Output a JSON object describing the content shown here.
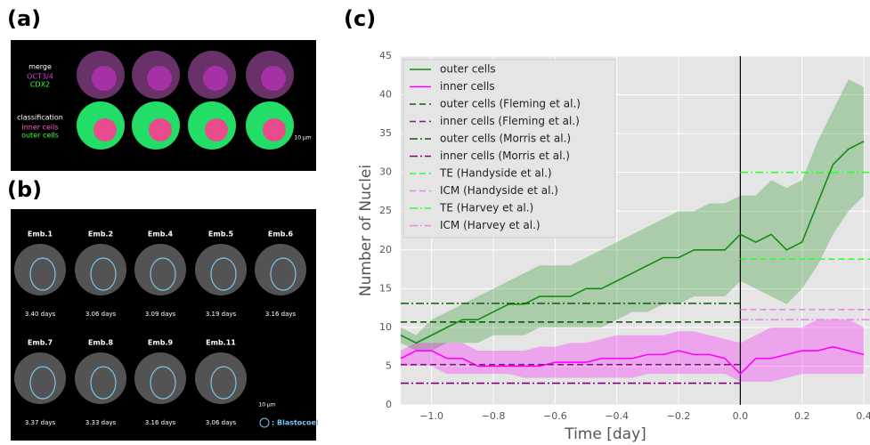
{
  "panel_a": {
    "label": "(a)",
    "rows": [
      "merge",
      "classification"
    ],
    "channels": [
      "OCT3/4",
      "CDX2"
    ],
    "classes": [
      "inner cells",
      "outer cells"
    ],
    "scale": "10 μm"
  },
  "panel_b": {
    "label": "(b)",
    "embryos": [
      {
        "name": "Emb.1",
        "days": "3.40 days"
      },
      {
        "name": "Emb.2",
        "days": "3.06 days"
      },
      {
        "name": "Emb.4",
        "days": "3.09 days"
      },
      {
        "name": "Emb.5",
        "days": "3.19 days"
      },
      {
        "name": "Emb.6",
        "days": "3.16 days"
      },
      {
        "name": "Emb.7",
        "days": "3.37 days"
      },
      {
        "name": "Emb.8",
        "days": "3.33 days"
      },
      {
        "name": "Emb.9",
        "days": "3.16 days"
      },
      {
        "name": "Emb.11",
        "days": "3.06 days"
      }
    ],
    "scale": "10 μm",
    "legend": ": Blastocoel"
  },
  "panel_c": {
    "label": "(c)"
  },
  "chart_data": {
    "type": "line",
    "xlabel": "Time [day]",
    "ylabel": "Number of Nuclei",
    "xlim": [
      -1.1,
      0.42
    ],
    "ylim": [
      0,
      45
    ],
    "xticks": [
      {
        "value": -1.0,
        "label": "−1.0"
      },
      {
        "value": -0.8,
        "label": "−0.8"
      },
      {
        "value": -0.6,
        "label": "−0.6"
      },
      {
        "value": -0.4,
        "label": "−0.4"
      },
      {
        "value": -0.2,
        "label": "−0.2"
      },
      {
        "value": 0,
        "label": "0.0"
      },
      0.2,
      0.4
    ],
    "yticks": [
      0,
      5,
      10,
      15,
      20,
      25,
      30,
      35,
      40,
      45
    ],
    "grid": true,
    "vline": 0,
    "legend": "upper left",
    "series": [
      {
        "name": "outer cells",
        "color": "#138c13",
        "dash": "solid",
        "x": [
          -1.1,
          -1.05,
          -1.0,
          -0.95,
          -0.9,
          -0.85,
          -0.8,
          -0.75,
          -0.7,
          -0.65,
          -0.6,
          -0.55,
          -0.5,
          -0.45,
          -0.4,
          -0.35,
          -0.3,
          -0.25,
          -0.2,
          -0.15,
          -0.1,
          -0.05,
          0,
          0.05,
          0.1,
          0.15,
          0.2,
          0.25,
          0.3,
          0.35,
          0.4
        ],
        "values": [
          9,
          8,
          9,
          10,
          11,
          11,
          12,
          13,
          13,
          14,
          14,
          14,
          15,
          15,
          16,
          17,
          18,
          19,
          19,
          20,
          20,
          20,
          22,
          21,
          22,
          20,
          21,
          26,
          31,
          33,
          34
        ],
        "band": {
          "lower": [
            8,
            7,
            7,
            8,
            8,
            8,
            9,
            9,
            9,
            10,
            10,
            10,
            10,
            10,
            11,
            12,
            12,
            13,
            13,
            14,
            14,
            14,
            16,
            15,
            14,
            13,
            15,
            18,
            22,
            25,
            27
          ],
          "upper": [
            10,
            9,
            11,
            12,
            13,
            14,
            15,
            16,
            17,
            18,
            18,
            18,
            19,
            20,
            21,
            22,
            23,
            24,
            25,
            25,
            26,
            26,
            27,
            27,
            29,
            28,
            29,
            34,
            38,
            42,
            41
          ]
        }
      },
      {
        "name": "inner cells",
        "color": "#ff00ff",
        "dash": "solid",
        "x": [
          -1.1,
          -1.05,
          -1.0,
          -0.95,
          -0.9,
          -0.85,
          -0.8,
          -0.75,
          -0.7,
          -0.65,
          -0.6,
          -0.55,
          -0.5,
          -0.45,
          -0.4,
          -0.35,
          -0.3,
          -0.25,
          -0.2,
          -0.15,
          -0.1,
          -0.05,
          0,
          0.05,
          0.1,
          0.15,
          0.2,
          0.25,
          0.3,
          0.35,
          0.4
        ],
        "values": [
          6,
          7,
          7,
          6,
          6,
          5,
          5,
          5,
          5,
          5,
          5.5,
          5.5,
          5.5,
          6,
          6,
          6,
          6.5,
          6.5,
          7,
          6.5,
          6.5,
          6,
          4,
          6,
          6,
          6.5,
          7,
          7,
          7.5,
          7,
          6.5
        ],
        "band": {
          "lower": [
            5,
            5,
            5,
            4,
            4,
            4,
            4,
            4,
            3.5,
            3.5,
            3.5,
            3.5,
            3.5,
            3.5,
            3.5,
            3.5,
            4,
            4,
            4,
            4,
            4,
            4,
            3,
            3,
            3,
            3.5,
            4,
            4,
            4,
            4,
            4
          ],
          "upper": [
            7,
            8,
            8,
            8,
            8,
            7,
            7,
            7,
            7,
            7.5,
            7.5,
            8,
            8,
            8.5,
            9,
            9,
            9,
            9,
            9.5,
            9.5,
            9,
            8.5,
            8,
            9,
            10,
            10,
            10,
            11,
            11,
            11,
            10
          ]
        }
      },
      {
        "name": "outer cells (Fleming et al.)",
        "color": "#0b5e0b",
        "dash": "dashed",
        "x": [
          -1.1,
          0
        ],
        "values": [
          10.7,
          10.7
        ]
      },
      {
        "name": "inner cells (Fleming et al.)",
        "color": "#7a1f7a",
        "dash": "dashed",
        "x": [
          -1.1,
          0
        ],
        "values": [
          5.2,
          5.2
        ]
      },
      {
        "name": "outer cells (Morris et al.)",
        "color": "#0b5e0b",
        "dash": "dashdot",
        "x": [
          -1.1,
          0
        ],
        "values": [
          13.1,
          13.1
        ]
      },
      {
        "name": "inner cells (Morris et al.)",
        "color": "#800080",
        "dash": "dashdot",
        "x": [
          -1.1,
          0
        ],
        "values": [
          2.8,
          2.8
        ]
      },
      {
        "name": "TE (Handyside et al.)",
        "color": "#33ff33",
        "dash": "dashed",
        "x": [
          0,
          0.42
        ],
        "values": [
          18.8,
          18.8
        ]
      },
      {
        "name": "ICM (Handyside et al.)",
        "color": "#ee82ee",
        "dash": "dashed",
        "x": [
          0,
          0.42
        ],
        "values": [
          12.3,
          12.3
        ]
      },
      {
        "name": "TE (Harvey et al.)",
        "color": "#33ff33",
        "dash": "dashdot",
        "x": [
          0,
          0.42
        ],
        "values": [
          30,
          30
        ]
      },
      {
        "name": "ICM (Harvey et al.)",
        "color": "#ee82ee",
        "dash": "dashdot",
        "x": [
          0,
          0.42
        ],
        "values": [
          11,
          11
        ]
      }
    ]
  }
}
